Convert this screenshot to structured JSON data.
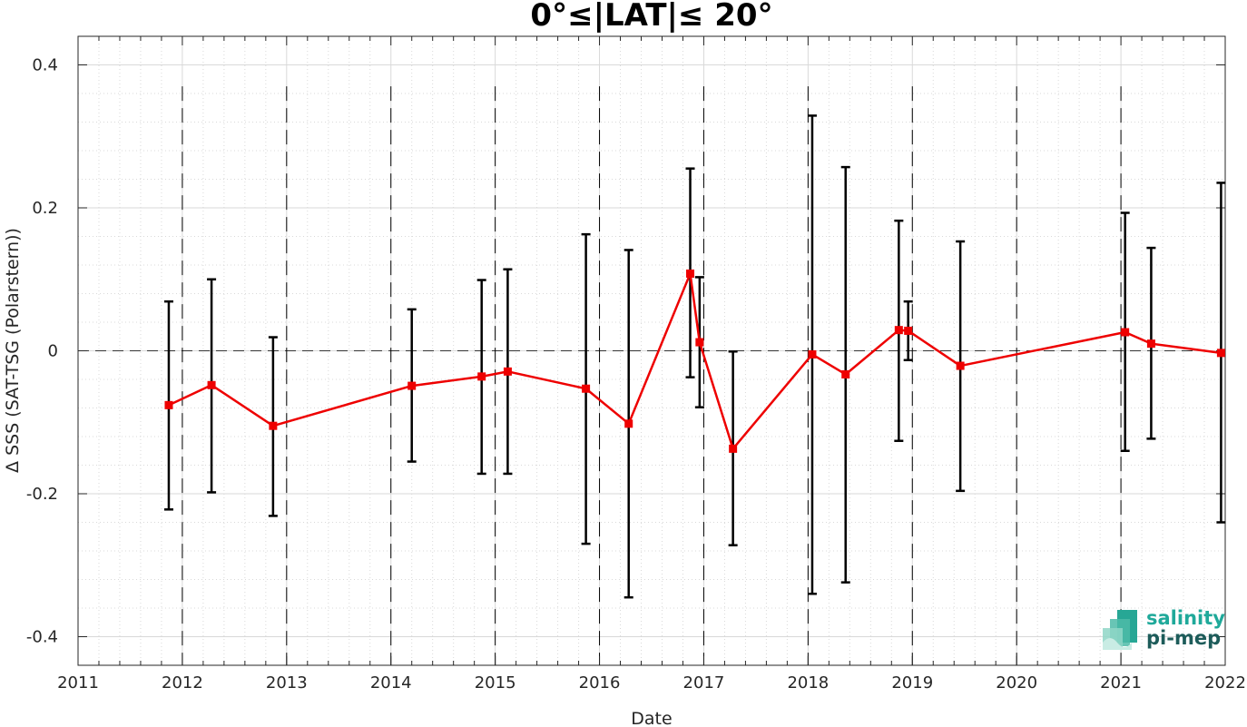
{
  "chart_data": {
    "type": "line",
    "title": "0°≤|LAT|≤ 20°",
    "xlabel": "Date",
    "ylabel": "Δ SSS (SAT-TSG (Polarstern))",
    "xlim": [
      2011,
      2022
    ],
    "ylim": [
      -0.44,
      0.44
    ],
    "x_ticks": [
      "2011",
      "2012",
      "2013",
      "2014",
      "2015",
      "2016",
      "2017",
      "2018",
      "2019",
      "2020",
      "2021",
      "2022"
    ],
    "y_ticks": [
      "0.4",
      "0.2",
      "0",
      "-0.2",
      "-0.4"
    ],
    "y_tick_values": [
      0.4,
      0.2,
      0,
      -0.2,
      -0.4
    ],
    "grid": true,
    "zero_line": true,
    "year_dividers": [
      2012,
      2013,
      2014,
      2015,
      2016,
      2017,
      2018,
      2019,
      2020,
      2021
    ],
    "series": [
      {
        "color": "#ee0000",
        "marker": "square",
        "x": [
          2011.87,
          2012.28,
          2012.87,
          2014.2,
          2014.87,
          2015.12,
          2015.87,
          2016.28,
          2016.87,
          2016.96,
          2017.28,
          2018.04,
          2018.36,
          2018.87,
          2018.96,
          2019.46,
          2021.04,
          2021.29,
          2021.96
        ],
        "y": [
          -0.076,
          -0.048,
          -0.105,
          -0.049,
          -0.036,
          -0.029,
          -0.053,
          -0.102,
          0.108,
          0.012,
          -0.137,
          -0.005,
          -0.033,
          0.029,
          0.028,
          -0.021,
          0.026,
          0.01,
          -0.003
        ],
        "err_low": [
          -0.222,
          -0.198,
          -0.231,
          -0.155,
          -0.172,
          -0.172,
          -0.27,
          -0.345,
          -0.037,
          -0.079,
          -0.272,
          -0.34,
          -0.324,
          -0.126,
          -0.013,
          -0.196,
          -0.14,
          -0.123,
          -0.24
        ],
        "err_high": [
          0.069,
          0.1,
          0.019,
          0.058,
          0.099,
          0.114,
          0.163,
          0.141,
          0.255,
          0.103,
          -0.001,
          0.329,
          0.257,
          0.182,
          0.069,
          0.153,
          0.193,
          0.144,
          0.235
        ]
      }
    ],
    "colors": {
      "line": "#ee0000",
      "errorbar": "#000000",
      "grid": "#d9d9d9",
      "divider": "#000000"
    }
  },
  "logo": {
    "line1": "salinity",
    "line2": "pi-mep",
    "color1": "#1fa99a",
    "color2": "#1d5c5a"
  }
}
